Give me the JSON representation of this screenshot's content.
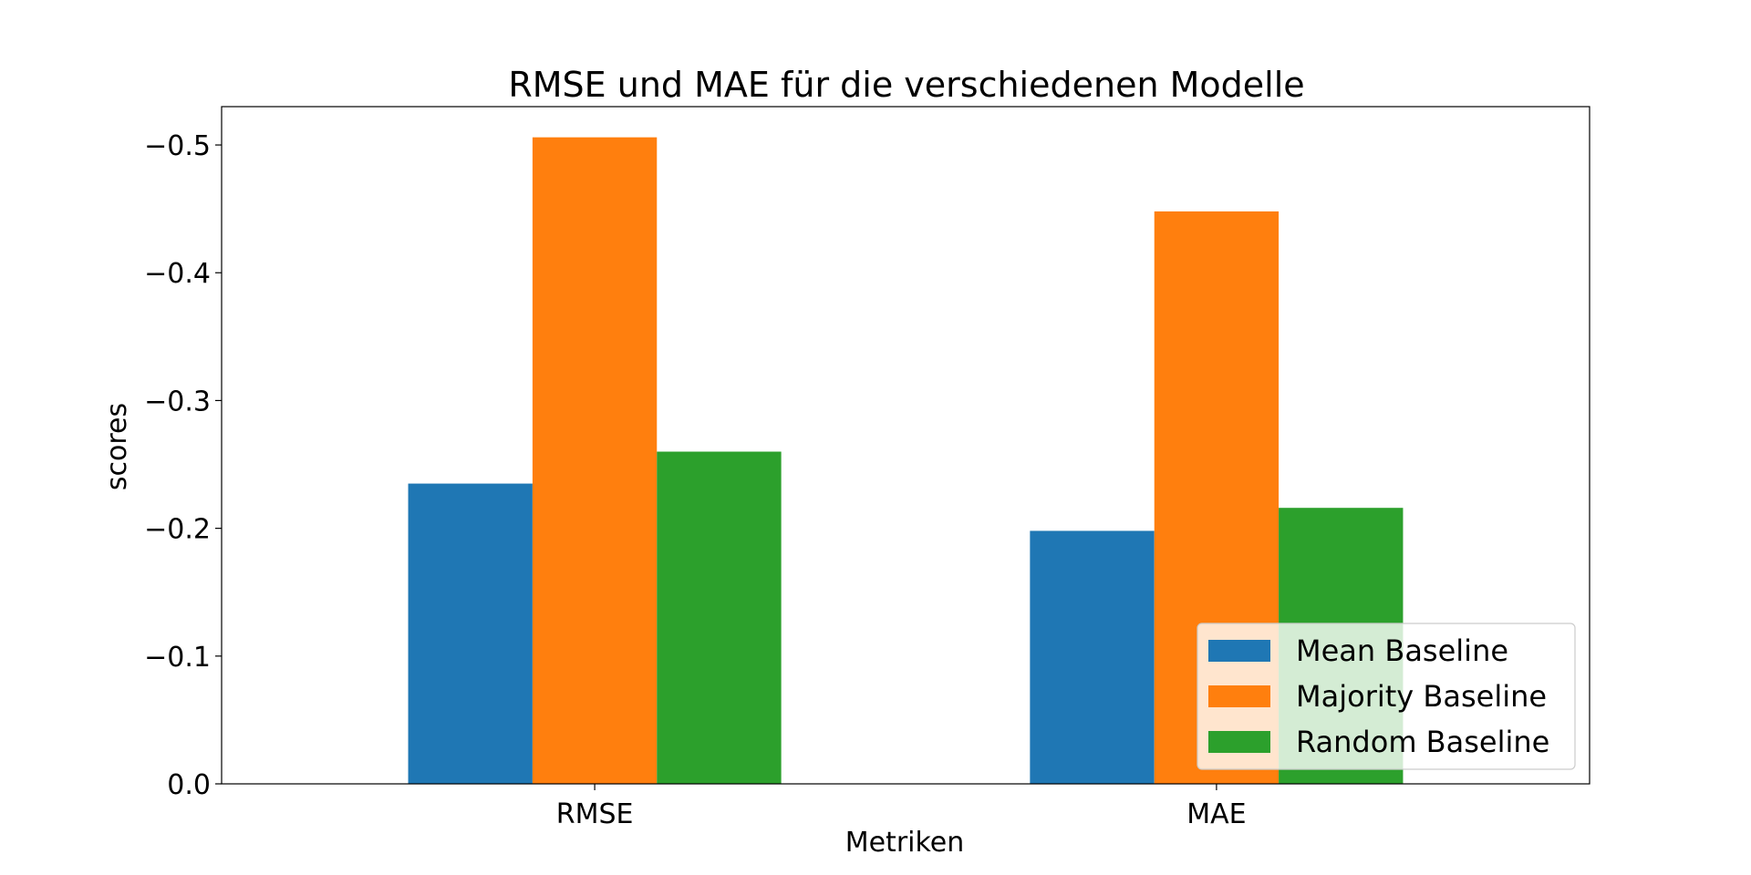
{
  "chart_data": {
    "type": "bar",
    "title": "RMSE und MAE für die verschiedenen Modelle",
    "xlabel": "Metriken",
    "ylabel": "scores",
    "categories": [
      "RMSE",
      "MAE"
    ],
    "series": [
      {
        "name": "Mean Baseline",
        "color": "#1f77b4",
        "values": [
          -0.235,
          -0.198
        ]
      },
      {
        "name": "Majority Baseline",
        "color": "#ff7f0e",
        "values": [
          -0.506,
          -0.448
        ]
      },
      {
        "name": "Random Baseline",
        "color": "#2ca02c",
        "values": [
          -0.26,
          -0.216
        ]
      }
    ],
    "ylim": [
      0.0,
      -0.53
    ],
    "yticks": [
      0.0,
      -0.1,
      -0.2,
      -0.3,
      -0.4,
      -0.5
    ],
    "ytick_labels": [
      "0.0",
      "−0.1",
      "−0.2",
      "−0.3",
      "−0.4",
      "−0.5"
    ],
    "legend_position": "lower-right",
    "grid": false
  }
}
